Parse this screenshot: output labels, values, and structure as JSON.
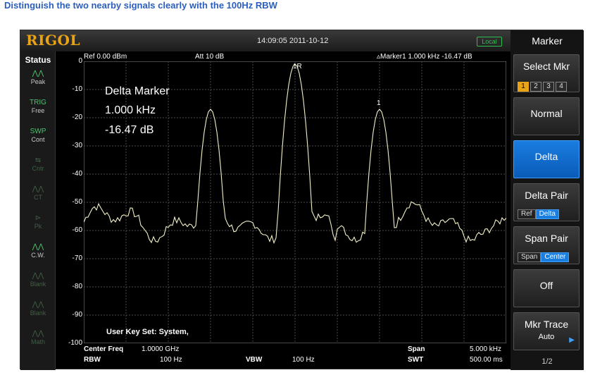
{
  "caption": "Distinguish the two nearby signals clearly with the 100Hz RBW",
  "topbar": {
    "logo": "RIGOL",
    "datetime": "14:09:05 2011-10-12",
    "local_badge": "Local"
  },
  "status": {
    "title": "Status",
    "items": [
      {
        "icon": "peak-icon",
        "glyph": "⋀⋀",
        "label": "Peak",
        "active": true
      },
      {
        "icon": "trig-icon",
        "glyph": "TRIG",
        "label": "Free",
        "active": true
      },
      {
        "icon": "swp-icon",
        "glyph": "SWP",
        "label": "Cont",
        "active": true
      },
      {
        "icon": "cntr-icon",
        "glyph": "⇆",
        "label": "Cntr",
        "active": false
      },
      {
        "icon": "ct-icon",
        "glyph": "⋀⋀",
        "label": "CT",
        "active": false
      },
      {
        "icon": "pk-icon",
        "glyph": "⊳",
        "label": "Pk",
        "active": false
      },
      {
        "icon": "cw-icon",
        "glyph": "⋀⋀",
        "label": "C.W.",
        "active": true
      },
      {
        "icon": "blank1-icon",
        "glyph": "⋀⋀",
        "label": "Blank",
        "active": false
      },
      {
        "icon": "blank2-icon",
        "glyph": "⋀⋀",
        "label": "Blank",
        "active": false
      },
      {
        "icon": "math-icon",
        "glyph": "⋀⋀",
        "label": "Math",
        "active": false
      }
    ]
  },
  "header": {
    "ref": "Ref  0.00 dBm",
    "att": "Att    10 dB",
    "marker": "▵Marker1   1.000 kHz   -16.47 dB"
  },
  "yaxis": {
    "labels": [
      "0",
      "-10",
      "-20",
      "-30",
      "-40",
      "-50",
      "-60",
      "-70",
      "-80",
      "-90",
      "-100"
    ]
  },
  "delta_marker": {
    "title": "Delta Marker",
    "freq": "1.000 kHz",
    "level": "-16.47 dB"
  },
  "marker_labels": {
    "r": "1R",
    "m1": "1"
  },
  "user_key": "User Key Set:  System,",
  "bottom": {
    "center_freq_label": "Center Freq",
    "center_freq_value": "1.0000 GHz",
    "span_label": "Span",
    "span_value": "5.000 kHz",
    "rbw_label": "RBW",
    "rbw_value": "100 Hz",
    "vbw_label": "VBW",
    "vbw_value": "100 Hz",
    "swt_label": "SWT",
    "swt_value": "500.00 ms"
  },
  "menu": {
    "title": "Marker",
    "select_mkr": "Select Mkr",
    "mkr_numbers": [
      "1",
      "2",
      "3",
      "4"
    ],
    "normal": "Normal",
    "delta": "Delta",
    "delta_pair": "Delta Pair",
    "delta_pair_opts": [
      "Ref",
      "Delta"
    ],
    "span_pair": "Span Pair",
    "span_pair_opts": [
      "Span",
      "Center"
    ],
    "off": "Off",
    "mkr_trace": "Mkr Trace",
    "mkr_trace_value": "Auto",
    "page": "1/2"
  },
  "colors": {
    "accent": "#1a7de0",
    "logo": "#e8a317",
    "trace": "#f3f0c8",
    "caption": "#2b5ebd"
  }
}
